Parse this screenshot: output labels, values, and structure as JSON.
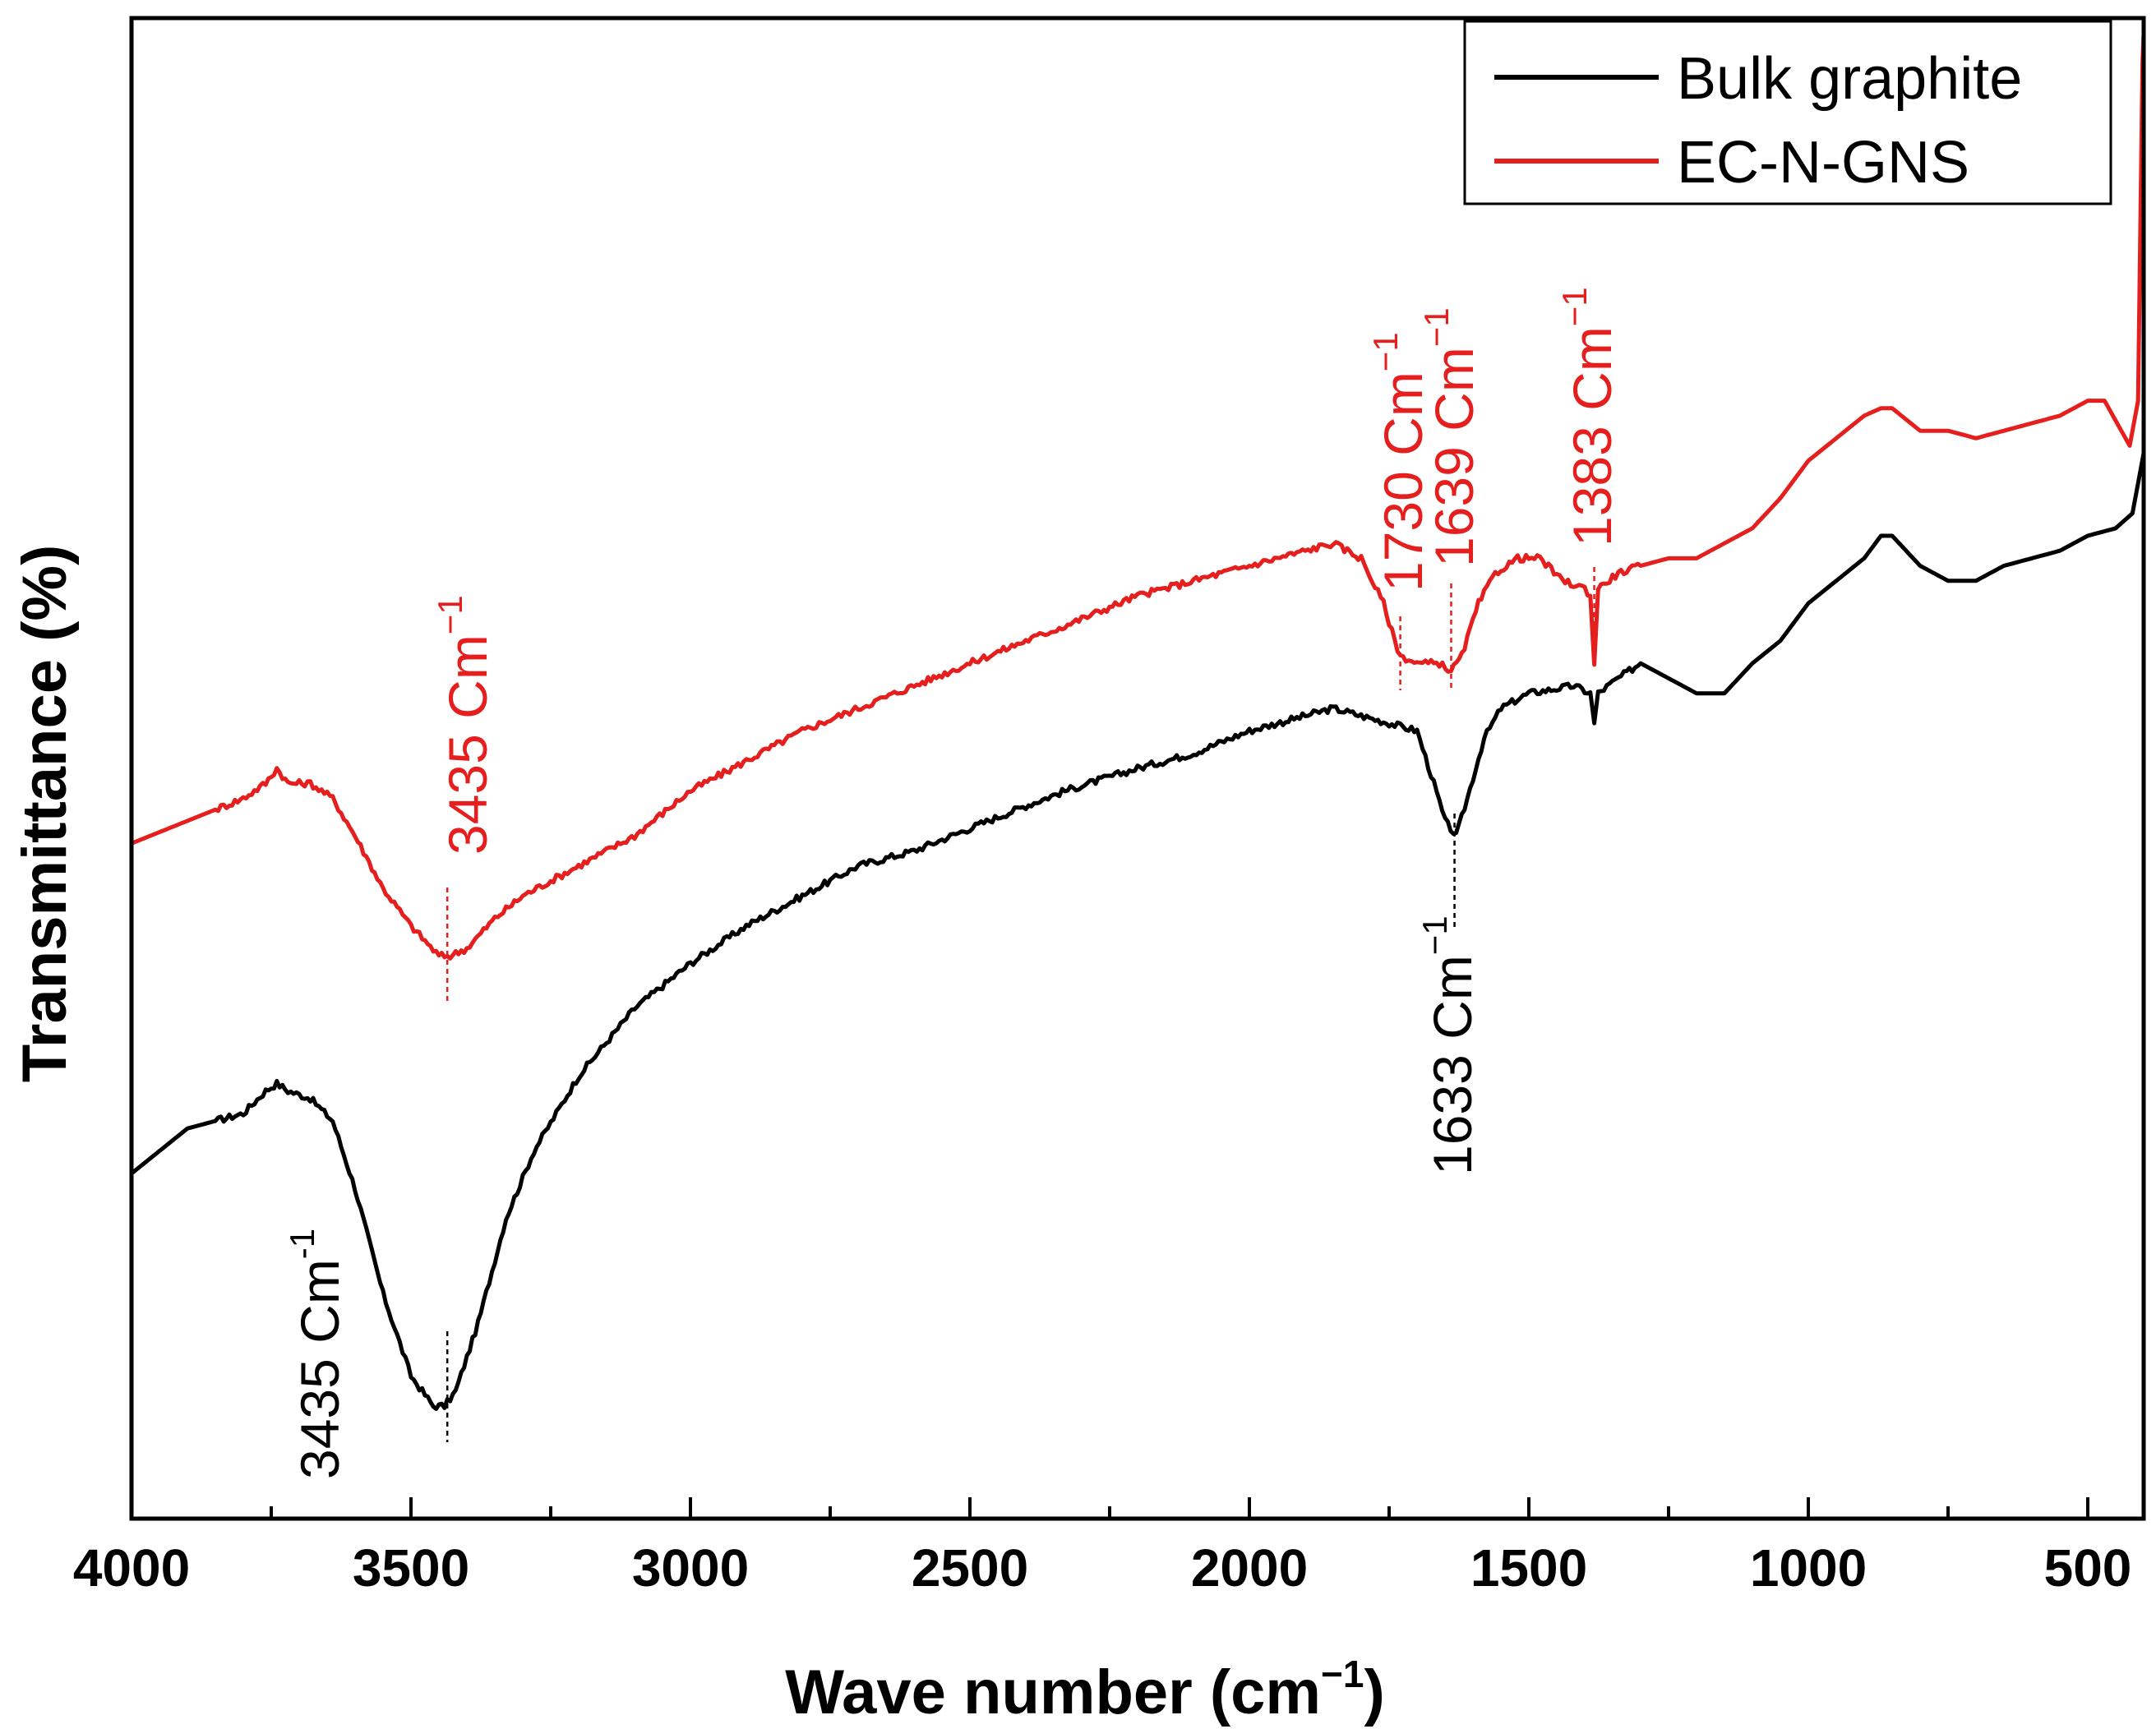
{
  "chart_data": {
    "type": "line",
    "xlabel_main": "Wave number (cm",
    "xlabel_sup": "−1",
    "xlabel_close": ")",
    "ylabel": "Transmittance (%)",
    "xlim": [
      4000,
      400
    ],
    "x_reversed": true,
    "ylim": [
      0,
      100
    ],
    "x_ticks": [
      4000,
      3500,
      3000,
      2500,
      2000,
      1500,
      1000,
      500
    ],
    "grid": false,
    "legend_position": "top-right",
    "series": [
      {
        "name": "Bulk graphite",
        "color": "#000000",
        "points": [
          [
            4000,
            23
          ],
          [
            3900,
            26
          ],
          [
            3800,
            27
          ],
          [
            3760,
            28.5
          ],
          [
            3740,
            29
          ],
          [
            3720,
            28.5
          ],
          [
            3680,
            28
          ],
          [
            3640,
            26.5
          ],
          [
            3600,
            22
          ],
          [
            3550,
            15
          ],
          [
            3500,
            9.5
          ],
          [
            3460,
            7.5
          ],
          [
            3440,
            7.5
          ],
          [
            3420,
            8.5
          ],
          [
            3380,
            13
          ],
          [
            3330,
            20
          ],
          [
            3280,
            24.5
          ],
          [
            3200,
            29.5
          ],
          [
            3100,
            34
          ],
          [
            3000,
            37
          ],
          [
            2900,
            39.5
          ],
          [
            2800,
            41.5
          ],
          [
            2700,
            43.5
          ],
          [
            2600,
            44.5
          ],
          [
            2500,
            46
          ],
          [
            2400,
            47.5
          ],
          [
            2330,
            48.5
          ],
          [
            2200,
            50
          ],
          [
            2100,
            51
          ],
          [
            2000,
            52.5
          ],
          [
            1900,
            53.5
          ],
          [
            1850,
            54
          ],
          [
            1800,
            53.5
          ],
          [
            1750,
            53
          ],
          [
            1700,
            52.5
          ],
          [
            1670,
            49
          ],
          [
            1650,
            46.5
          ],
          [
            1630,
            45.5
          ],
          [
            1610,
            48
          ],
          [
            1580,
            52
          ],
          [
            1550,
            54
          ],
          [
            1500,
            55
          ],
          [
            1420,
            55.5
          ],
          [
            1390,
            55
          ],
          [
            1383,
            53
          ],
          [
            1376,
            55
          ],
          [
            1340,
            56
          ],
          [
            1300,
            57
          ],
          [
            1250,
            56
          ],
          [
            1200,
            55
          ],
          [
            1150,
            55
          ],
          [
            1100,
            57
          ],
          [
            1050,
            58.5
          ],
          [
            1000,
            61
          ],
          [
            950,
            62.5
          ],
          [
            900,
            64
          ],
          [
            870,
            65.5
          ],
          [
            850,
            65.5
          ],
          [
            800,
            63.5
          ],
          [
            750,
            62.5
          ],
          [
            700,
            62.5
          ],
          [
            650,
            63.5
          ],
          [
            600,
            64
          ],
          [
            550,
            64.5
          ],
          [
            500,
            65.5
          ],
          [
            450,
            66
          ],
          [
            420,
            67
          ],
          [
            400,
            71
          ]
        ]
      },
      {
        "name": "EC-N-GNS",
        "color": "#e51e1e",
        "points": [
          [
            4000,
            45
          ],
          [
            3900,
            46.5
          ],
          [
            3800,
            48
          ],
          [
            3760,
            49
          ],
          [
            3740,
            50
          ],
          [
            3720,
            49
          ],
          [
            3680,
            49
          ],
          [
            3640,
            48
          ],
          [
            3600,
            45.5
          ],
          [
            3550,
            42
          ],
          [
            3500,
            39.5
          ],
          [
            3450,
            37.5
          ],
          [
            3430,
            37.5
          ],
          [
            3400,
            38
          ],
          [
            3350,
            40
          ],
          [
            3300,
            41.5
          ],
          [
            3200,
            43.5
          ],
          [
            3100,
            45.5
          ],
          [
            3000,
            48.5
          ],
          [
            2900,
            50.5
          ],
          [
            2800,
            52.5
          ],
          [
            2700,
            54
          ],
          [
            2600,
            55.5
          ],
          [
            2500,
            57
          ],
          [
            2400,
            58.5
          ],
          [
            2330,
            59.5
          ],
          [
            2200,
            61.5
          ],
          [
            2100,
            62.5
          ],
          [
            2000,
            63.5
          ],
          [
            1900,
            64.5
          ],
          [
            1850,
            65
          ],
          [
            1800,
            64
          ],
          [
            1760,
            61
          ],
          [
            1740,
            58.5
          ],
          [
            1730,
            57.5
          ],
          [
            1700,
            57
          ],
          [
            1660,
            57
          ],
          [
            1639,
            56.5
          ],
          [
            1620,
            57.5
          ],
          [
            1590,
            61
          ],
          [
            1560,
            63
          ],
          [
            1520,
            64
          ],
          [
            1480,
            64
          ],
          [
            1440,
            62.5
          ],
          [
            1400,
            62
          ],
          [
            1390,
            61.5
          ],
          [
            1383,
            57
          ],
          [
            1376,
            62
          ],
          [
            1340,
            63
          ],
          [
            1300,
            63.5
          ],
          [
            1250,
            64
          ],
          [
            1200,
            64
          ],
          [
            1150,
            65
          ],
          [
            1100,
            66
          ],
          [
            1050,
            68
          ],
          [
            1000,
            70.5
          ],
          [
            950,
            72
          ],
          [
            900,
            73.5
          ],
          [
            870,
            74
          ],
          [
            850,
            74
          ],
          [
            800,
            72.5
          ],
          [
            750,
            72.5
          ],
          [
            700,
            72
          ],
          [
            650,
            72.5
          ],
          [
            600,
            73
          ],
          [
            550,
            73.5
          ],
          [
            500,
            74.5
          ],
          [
            470,
            74.5
          ],
          [
            440,
            72.5
          ],
          [
            425,
            71.5
          ],
          [
            410,
            74.5
          ],
          [
            402,
            97
          ],
          [
            400,
            99
          ]
        ]
      }
    ],
    "annotations": [
      {
        "series": "EC-N-GNS",
        "x": 3435,
        "y": 37.5,
        "label": "3435 Cm",
        "sup": "−1",
        "color": "#e51e1e"
      },
      {
        "series": "EC-N-GNS",
        "x": 1730,
        "y": 57.5,
        "label": "1730 Cm",
        "sup": "−1",
        "color": "#e51e1e"
      },
      {
        "series": "EC-N-GNS",
        "x": 1639,
        "y": 56.5,
        "label": "1639 Cm",
        "sup": "−1",
        "color": "#e51e1e"
      },
      {
        "series": "EC-N-GNS",
        "x": 1383,
        "y": 57,
        "label": "1383 Cm",
        "sup": "−1",
        "color": "#e51e1e"
      },
      {
        "series": "Bulk graphite",
        "x": 3435,
        "y": 7.5,
        "label": "3435 Cm",
        "sup": "-1",
        "color": "#000000"
      },
      {
        "series": "Bulk graphite",
        "x": 1633,
        "y": 45.5,
        "label": "1633 Cm",
        "sup": "−1",
        "color": "#000000"
      }
    ]
  }
}
